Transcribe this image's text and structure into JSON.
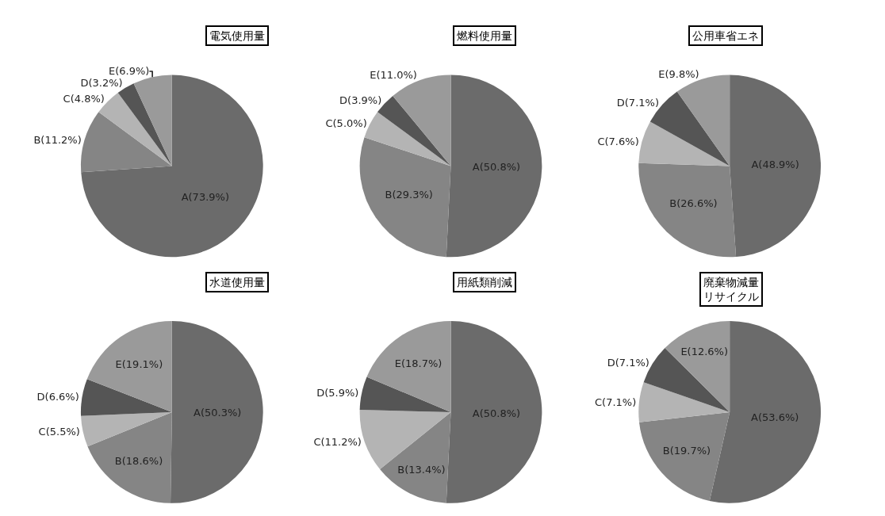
{
  "chart_data": [
    {
      "type": "pie",
      "title": "電気使用量",
      "categories": [
        "A",
        "B",
        "C",
        "D",
        "E"
      ],
      "values": [
        73.9,
        11.2,
        4.8,
        3.2,
        6.9
      ],
      "value_labels": [
        "(73.9%)",
        "(11.2%)",
        "(4.8%)",
        "(3.2%)",
        "(6.9%)"
      ],
      "colors": [
        "#6b6b6b",
        "#858585",
        "#b4b4b4",
        "#555555",
        "#9a9a9a"
      ]
    },
    {
      "type": "pie",
      "title": "燃料使用量",
      "categories": [
        "A",
        "B",
        "C",
        "D",
        "E"
      ],
      "values": [
        50.8,
        29.3,
        5.0,
        3.9,
        11.0
      ],
      "value_labels": [
        "(50.8%)",
        "(29.3%)",
        "(5.0%)",
        "(3.9%)",
        "(11.0%)"
      ],
      "colors": [
        "#6b6b6b",
        "#858585",
        "#b4b4b4",
        "#555555",
        "#9a9a9a"
      ]
    },
    {
      "type": "pie",
      "title": "公用車省エネ",
      "categories": [
        "A",
        "B",
        "C",
        "D",
        "E"
      ],
      "values": [
        48.9,
        26.6,
        7.6,
        7.1,
        9.8
      ],
      "value_labels": [
        "(48.9%)",
        "(26.6%)",
        "(7.6%)",
        "(7.1%)",
        "(9.8%)"
      ],
      "colors": [
        "#6b6b6b",
        "#858585",
        "#b4b4b4",
        "#555555",
        "#9a9a9a"
      ]
    },
    {
      "type": "pie",
      "title": "水道使用量",
      "categories": [
        "A",
        "B",
        "C",
        "D",
        "E"
      ],
      "values": [
        50.3,
        18.6,
        5.5,
        6.6,
        19.1
      ],
      "value_labels": [
        "(50.3%)",
        "(18.6%)",
        "(5.5%)",
        "(6.6%)",
        "(19.1%)"
      ],
      "colors": [
        "#6b6b6b",
        "#858585",
        "#b4b4b4",
        "#555555",
        "#9a9a9a"
      ]
    },
    {
      "type": "pie",
      "title": "用紙類削減",
      "categories": [
        "A",
        "B",
        "C",
        "D",
        "E"
      ],
      "values": [
        50.8,
        13.4,
        11.2,
        5.9,
        18.7
      ],
      "value_labels": [
        "(50.8%)",
        "(13.4%)",
        "(11.2%)",
        "(5.9%)",
        "(18.7%)"
      ],
      "colors": [
        "#6b6b6b",
        "#858585",
        "#b4b4b4",
        "#555555",
        "#9a9a9a"
      ]
    },
    {
      "type": "pie",
      "title": "廃棄物減量リサイクル",
      "categories": [
        "A",
        "B",
        "C",
        "D",
        "E"
      ],
      "values": [
        53.6,
        19.7,
        7.1,
        7.1,
        12.6
      ],
      "value_labels": [
        "(53.6%)",
        "(19.7%)",
        "(7.1%)",
        "(7.1%)",
        "(12.6%)"
      ],
      "colors": [
        "#6b6b6b",
        "#858585",
        "#b4b4b4",
        "#555555",
        "#9a9a9a"
      ]
    }
  ]
}
